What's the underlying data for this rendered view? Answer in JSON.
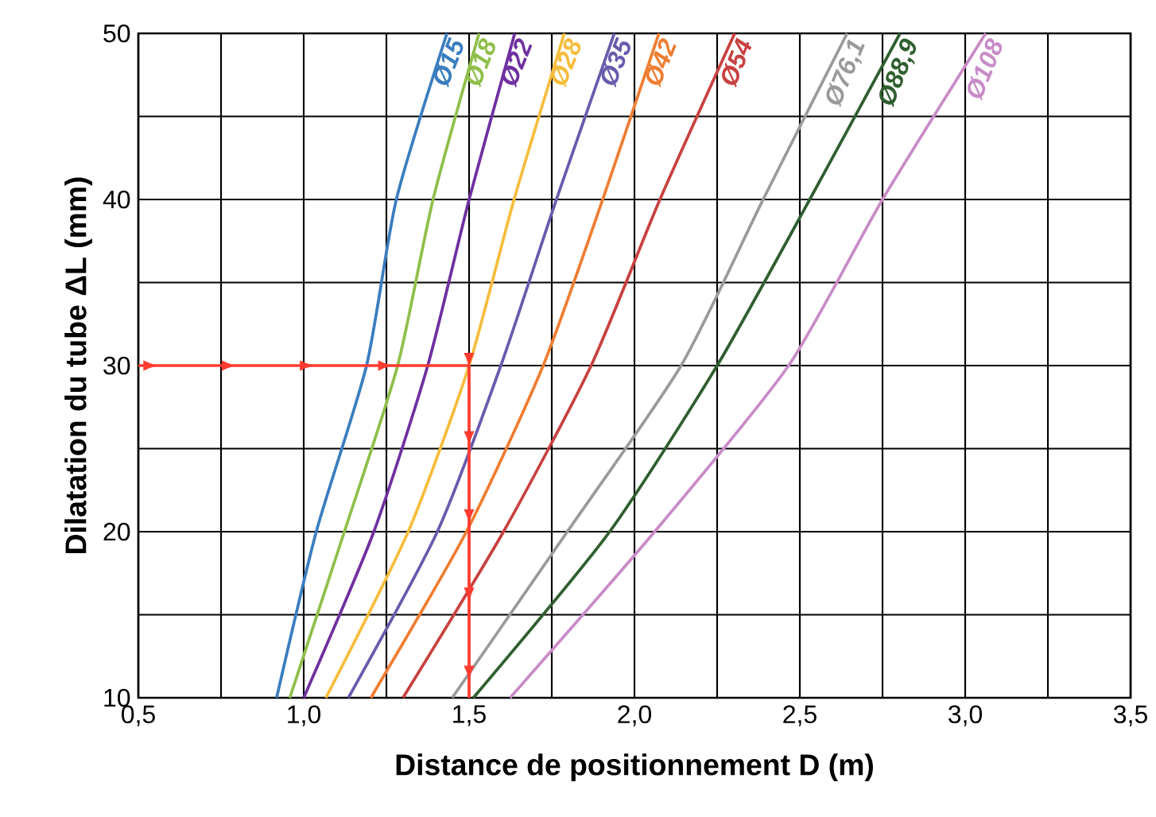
{
  "chart_data": {
    "type": "line",
    "xlabel": "Distance de positionnement D  (m)",
    "ylabel": "Dilatation du tube ΔL (mm)",
    "xlim": [
      0.5,
      3.5
    ],
    "ylim": [
      10,
      50
    ],
    "xticks": [
      {
        "value": 0.5,
        "label": "0,5"
      },
      {
        "value": 1.0,
        "label": "1,0"
      },
      {
        "value": 1.5,
        "label": "1,5"
      },
      {
        "value": 2.0,
        "label": "2,0"
      },
      {
        "value": 2.5,
        "label": "2,5"
      },
      {
        "value": 3.0,
        "label": "3,0"
      },
      {
        "value": 3.5,
        "label": "3,5"
      }
    ],
    "yticks": [
      10,
      20,
      30,
      40,
      50
    ],
    "grid": true,
    "series": [
      {
        "name": "Ø15",
        "color": "#3a7dbf",
        "x": [
          0.918,
          1.038,
          1.19,
          1.28,
          1.433
        ],
        "values": [
          10,
          20,
          30,
          40,
          50
        ]
      },
      {
        "name": "Ø18",
        "color": "#8fbf4a",
        "x": [
          0.958,
          1.123,
          1.284,
          1.391,
          1.53
        ],
        "values": [
          10,
          20,
          30,
          40,
          50
        ]
      },
      {
        "name": "Ø22",
        "color": "#7030a0",
        "x": [
          1.0,
          1.212,
          1.375,
          1.5,
          1.638
        ],
        "values": [
          10,
          20,
          30,
          40,
          50
        ]
      },
      {
        "name": "Ø28",
        "color": "#f6bd3c",
        "x": [
          1.067,
          1.316,
          1.5,
          1.636,
          1.788
        ],
        "values": [
          10,
          20,
          30,
          40,
          50
        ]
      },
      {
        "name": "Ø35",
        "color": "#6a5aad",
        "x": [
          1.135,
          1.404,
          1.596,
          1.764,
          1.939
        ],
        "values": [
          10,
          20,
          30,
          40,
          50
        ]
      },
      {
        "name": "Ø42",
        "color": "#ef7d31",
        "x": [
          1.203,
          1.492,
          1.724,
          1.904,
          2.074
        ],
        "values": [
          10,
          20,
          30,
          40,
          50
        ]
      },
      {
        "name": "Ø54",
        "color": "#c8413f",
        "x": [
          1.3,
          1.604,
          1.869,
          2.077,
          2.303
        ],
        "values": [
          10,
          20,
          30,
          40,
          50
        ]
      },
      {
        "name": "Ø76,1",
        "color": "#9a9a9a",
        "x": [
          1.449,
          1.797,
          2.141,
          2.389,
          2.643
        ],
        "values": [
          10,
          20,
          30,
          40,
          50
        ]
      },
      {
        "name": "Ø88,9",
        "color": "#2f5f2f",
        "x": [
          1.513,
          1.925,
          2.25,
          2.53,
          2.803
        ],
        "values": [
          10,
          20,
          30,
          40,
          50
        ]
      },
      {
        "name": "Ø108",
        "color": "#c98bc8",
        "x": [
          1.624,
          2.061,
          2.466,
          2.75,
          3.062
        ],
        "values": [
          10,
          20,
          30,
          40,
          50
        ]
      },
      {
        "color": "#ff3b30",
        "x": [
          0.5,
          1.5,
          1.5
        ],
        "values": [
          30,
          30,
          10
        ]
      }
    ]
  }
}
